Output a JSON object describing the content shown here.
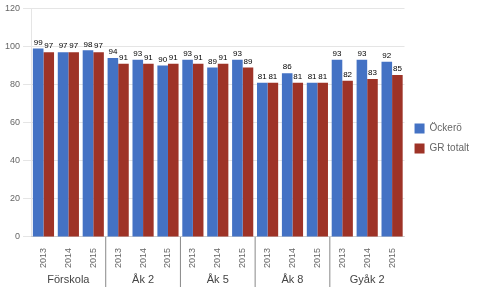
{
  "chart_data": {
    "type": "bar",
    "categories": [
      "2013",
      "2014",
      "2015",
      "2013",
      "2014",
      "2015",
      "2013",
      "2014",
      "2015",
      "2013",
      "2014",
      "2015",
      "2013",
      "2014",
      "2015"
    ],
    "groups": [
      "Förskola",
      "Åk 2",
      "Åk 5",
      "Åk 8",
      "Gyåk 2"
    ],
    "series": [
      {
        "name": "Öckerö",
        "color": "#4472C4",
        "values": [
          99,
          97,
          98,
          94,
          93,
          90,
          93,
          89,
          93,
          81,
          86,
          81,
          93,
          93,
          92
        ]
      },
      {
        "name": "GR totalt",
        "color": "#9E3327",
        "values": [
          97,
          97,
          97,
          91,
          91,
          91,
          91,
          91,
          89,
          81,
          81,
          81,
          82,
          83,
          85
        ]
      }
    ],
    "ylim": [
      0,
      120
    ],
    "yticks": [
      0,
      20,
      40,
      60,
      80,
      100,
      120
    ],
    "grid": true,
    "legend": "right",
    "data_labels": true
  }
}
